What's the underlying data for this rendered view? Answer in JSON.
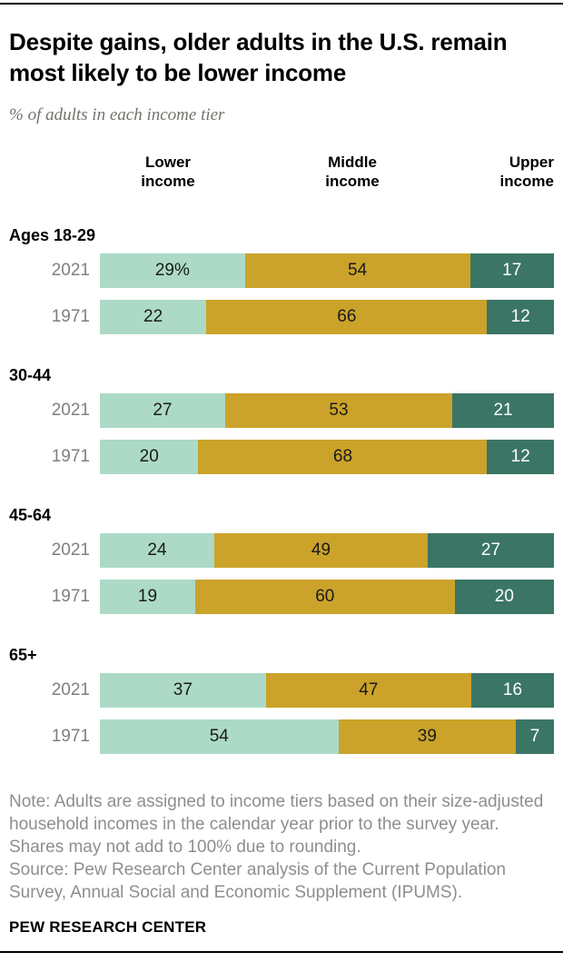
{
  "chart_data": {
    "type": "bar",
    "orientation": "horizontal",
    "stacked": true,
    "title": "Despite gains, older adults in the U.S. remain most likely to be lower income",
    "subtitle": "% of adults in each income tier",
    "column_headers": [
      "Lower income",
      "Middle income",
      "Upper income"
    ],
    "colors": {
      "lower": "#acdac6",
      "middle": "#cba32a",
      "upper": "#3b7565"
    },
    "value_unit": "percent",
    "groups": [
      {
        "label": "Ages 18-29",
        "rows": [
          {
            "year": "2021",
            "values": [
              29,
              54,
              17
            ],
            "labels": [
              "29%",
              "54",
              "17"
            ]
          },
          {
            "year": "1971",
            "values": [
              22,
              66,
              12
            ],
            "labels": [
              "22",
              "66",
              "12"
            ]
          }
        ]
      },
      {
        "label": "30-44",
        "rows": [
          {
            "year": "2021",
            "values": [
              27,
              53,
              21
            ],
            "labels": [
              "27",
              "53",
              "21"
            ]
          },
          {
            "year": "1971",
            "values": [
              20,
              68,
              12
            ],
            "labels": [
              "20",
              "68",
              "12"
            ]
          }
        ]
      },
      {
        "label": "45-64",
        "rows": [
          {
            "year": "2021",
            "values": [
              24,
              49,
              27
            ],
            "labels": [
              "24",
              "49",
              "27"
            ]
          },
          {
            "year": "1971",
            "values": [
              19,
              60,
              20
            ],
            "labels": [
              "19",
              "60",
              "20"
            ]
          }
        ]
      },
      {
        "label": "65+",
        "rows": [
          {
            "year": "2021",
            "values": [
              37,
              47,
              16
            ],
            "labels": [
              "37",
              "47",
              "16"
            ]
          },
          {
            "year": "1971",
            "values": [
              54,
              39,
              7
            ],
            "labels": [
              "54",
              "39",
              "7"
            ]
          }
        ]
      }
    ]
  },
  "footer": {
    "note": "Note: Adults are assigned to income tiers based on their size-adjusted household incomes in the calendar year prior to the survey year. Shares may not add to 100% due to rounding.",
    "source": "Source: Pew Research Center analysis of the Current Population Survey, Annual Social and Economic Supplement (IPUMS).",
    "brand": "PEW RESEARCH CENTER"
  }
}
